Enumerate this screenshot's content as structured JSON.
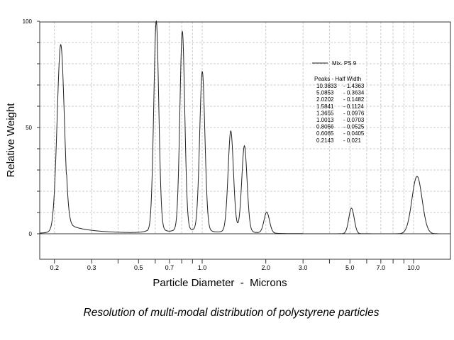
{
  "chart_data": {
    "type": "line",
    "title": "",
    "caption": "Resolution of multi-modal distribution of polystyrene particles",
    "xlabel": "Particle Diameter  -  Microns",
    "ylabel": "Relative Weight",
    "xscale": "log",
    "xlim": [
      0.17,
      14.5
    ],
    "ylim": [
      -12,
      100
    ],
    "grid": true,
    "y_ticks": [
      100,
      50,
      0
    ],
    "y_tick_labels": [
      "100",
      "50",
      "0"
    ],
    "x_ticks": [
      0.2,
      0.3,
      0.4,
      0.5,
      0.6,
      0.7,
      0.8,
      0.9,
      1,
      2,
      3,
      4,
      5,
      6,
      7,
      8,
      9,
      10
    ],
    "x_tick_labels": [
      {
        "value": 0.2,
        "label": "0.2"
      },
      {
        "value": 0.3,
        "label": "0.3"
      },
      {
        "value": 0.5,
        "label": "0.5"
      },
      {
        "value": 0.7,
        "label": "0.7"
      },
      {
        "value": 1.0,
        "label": "1.0"
      },
      {
        "value": 2.0,
        "label": "2.0"
      },
      {
        "value": 3.0,
        "label": "3.0"
      },
      {
        "value": 5.0,
        "label": "5.0"
      },
      {
        "value": 7.0,
        "label": "7.0"
      },
      {
        "value": 10.0,
        "label": "10.0"
      }
    ],
    "legend": {
      "position": "top-right",
      "series_name": "Mix. PS 9"
    },
    "peaks_table": {
      "header": "Peaks  -  Half Width",
      "rows": [
        {
          "peak": "10.3833",
          "half_width": "1.4363"
        },
        {
          "peak": "5.0853",
          "half_width": "0.3634"
        },
        {
          "peak": "2.0202",
          "half_width": "0.1482"
        },
        {
          "peak": "1.5841",
          "half_width": "0.1124"
        },
        {
          "peak": "1.3655",
          "half_width": "0.0976"
        },
        {
          "peak": "1.0013",
          "half_width": "0.0703"
        },
        {
          "peak": "0.8056",
          "half_width": "0.0525"
        },
        {
          "peak": "0.6065",
          "half_width": "0.0405"
        },
        {
          "peak": "0.2143",
          "half_width": "0.021"
        }
      ]
    },
    "series": [
      {
        "name": "Mix. PS 9",
        "peaks": [
          {
            "x": 0.2143,
            "height": 89,
            "half_width": 0.021
          },
          {
            "x": 0.6065,
            "height": 100,
            "half_width": 0.0405
          },
          {
            "x": 0.8056,
            "height": 95,
            "half_width": 0.0525
          },
          {
            "x": 1.0013,
            "height": 76,
            "half_width": 0.0703
          },
          {
            "x": 1.3655,
            "height": 48,
            "half_width": 0.0976
          },
          {
            "x": 1.5841,
            "height": 41,
            "half_width": 0.1124
          },
          {
            "x": 2.0202,
            "height": 10,
            "half_width": 0.1482
          },
          {
            "x": 5.0853,
            "height": 12,
            "half_width": 0.3634
          },
          {
            "x": 10.3833,
            "height": 27,
            "half_width": 1.4363
          }
        ]
      }
    ]
  }
}
